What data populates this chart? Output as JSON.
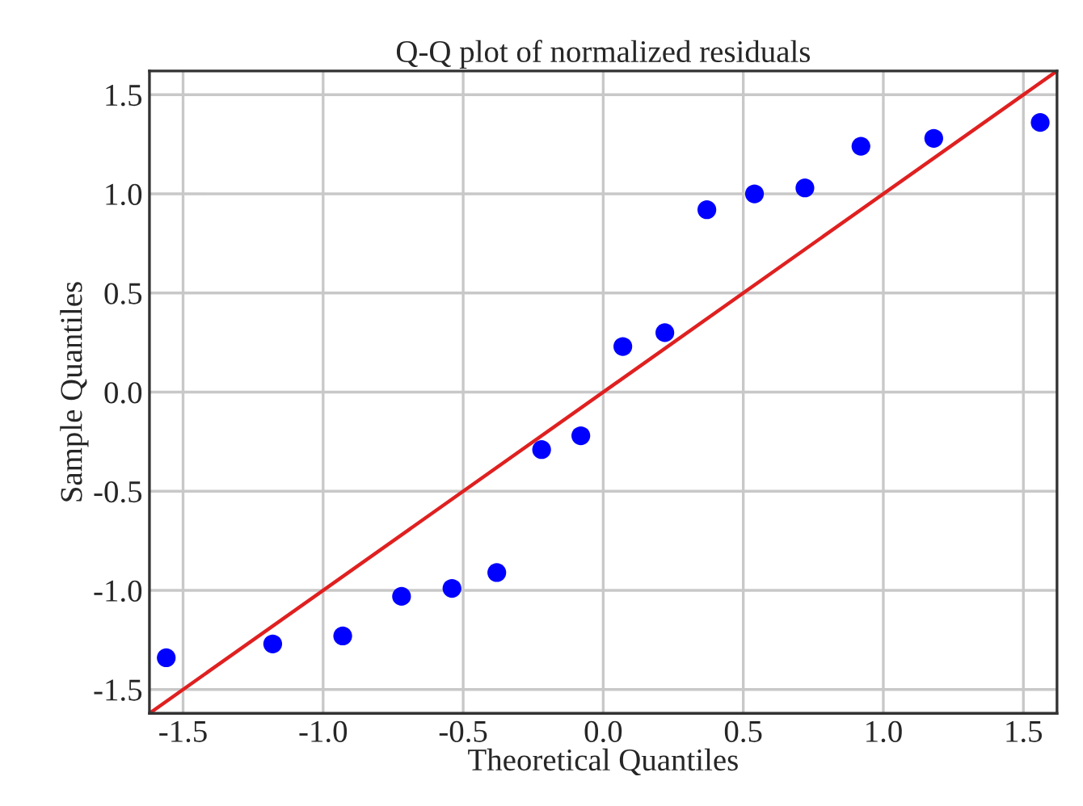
{
  "chart_data": {
    "type": "scatter",
    "title": "Q-Q plot of normalized residuals",
    "xlabel": "Theoretical Quantiles",
    "ylabel": "Sample Quantiles",
    "series": [
      {
        "color": "#0000ff",
        "marker": "circle",
        "x": [
          -1.56,
          -1.18,
          -0.93,
          -0.72,
          -0.54,
          -0.38,
          -0.22,
          -0.08,
          0.07,
          0.22,
          0.37,
          0.54,
          0.72,
          0.92,
          1.18,
          1.56
        ],
        "values": [
          -1.34,
          -1.27,
          -1.23,
          -1.03,
          -0.99,
          -0.91,
          -0.29,
          -0.22,
          0.23,
          0.3,
          0.92,
          1.0,
          1.03,
          1.24,
          1.28,
          1.36
        ]
      },
      {
        "type": "line",
        "color": "#e02020",
        "x": [
          -1.62,
          1.62
        ],
        "values": [
          -1.62,
          1.62
        ]
      }
    ],
    "xlim": [
      -1.62,
      1.62
    ],
    "ylim": [
      -1.62,
      1.62
    ],
    "xticks": [
      {
        "value": -1.5,
        "label": "-1.5"
      },
      {
        "value": -1.0,
        "label": "-1.0"
      },
      {
        "value": -0.5,
        "label": "-0.5"
      },
      {
        "value": 0.0,
        "label": "0.0"
      },
      {
        "value": 0.5,
        "label": "0.5"
      },
      {
        "value": 1.0,
        "label": "1.0"
      },
      {
        "value": 1.5,
        "label": "1.5"
      }
    ],
    "yticks": [
      {
        "value": -1.5,
        "label": "-1.5"
      },
      {
        "value": -1.0,
        "label": "-1.0"
      },
      {
        "value": -0.5,
        "label": "-0.5"
      },
      {
        "value": 0.0,
        "label": "0.0"
      },
      {
        "value": 0.5,
        "label": "0.5"
      },
      {
        "value": 1.0,
        "label": "1.0"
      },
      {
        "value": 1.5,
        "label": "1.5"
      }
    ],
    "grid": true
  }
}
